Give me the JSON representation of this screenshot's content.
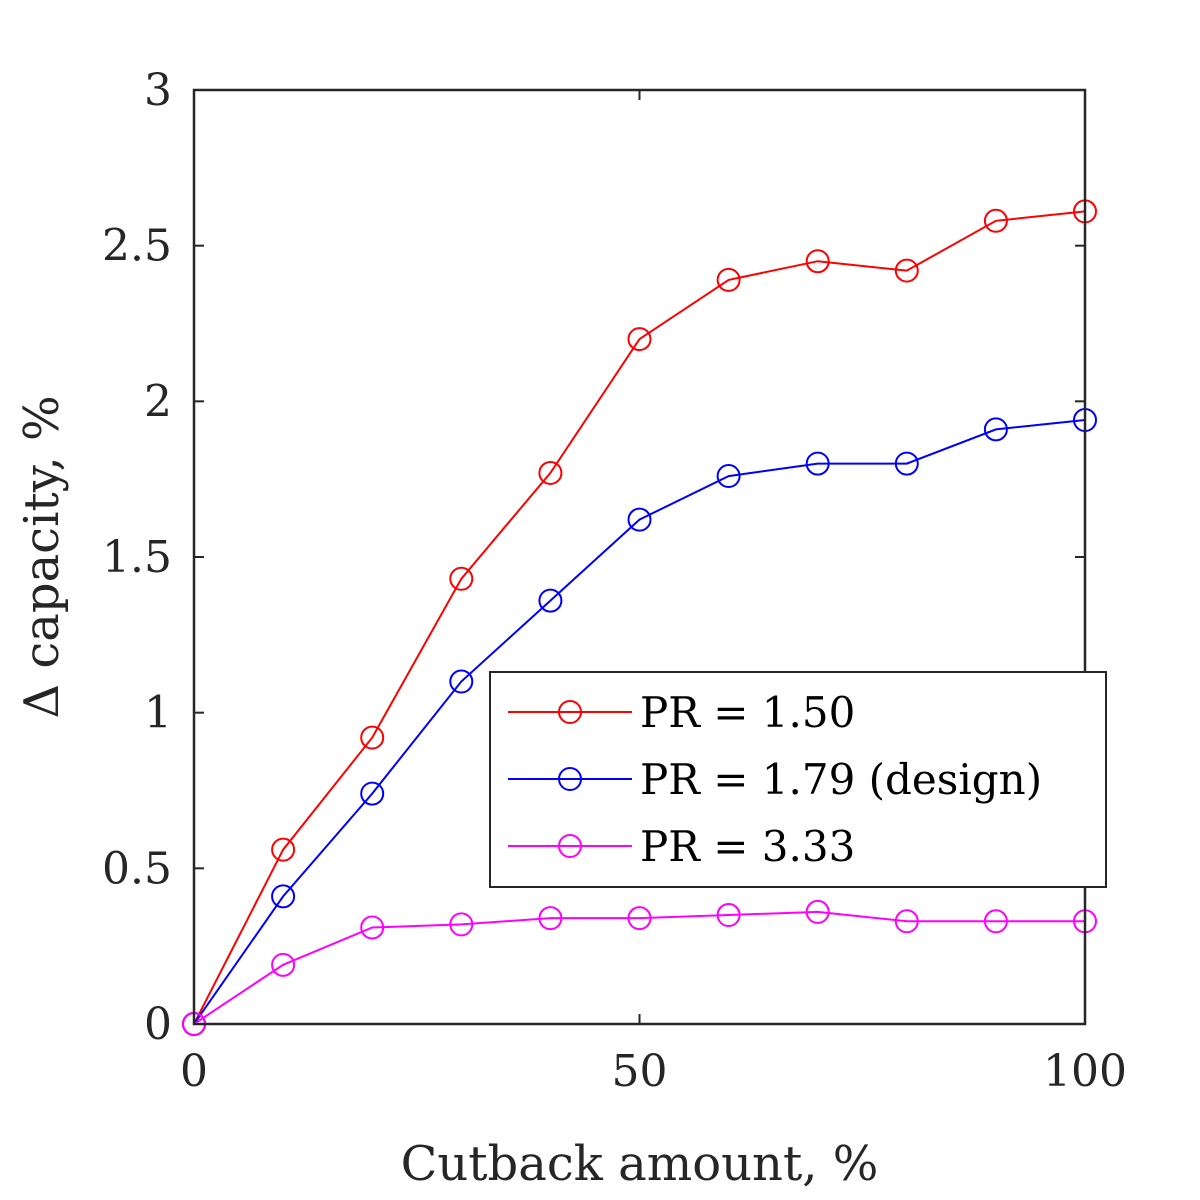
{
  "chart_data": {
    "type": "line",
    "xlabel": "Cutback amount, %",
    "ylabel": "Δ capacity, %",
    "xlim": [
      0,
      100
    ],
    "ylim": [
      0,
      3
    ],
    "xticks": [
      0,
      50,
      100
    ],
    "xtick_labels": [
      "0",
      "50",
      "100"
    ],
    "yticks": [
      0,
      0.5,
      1,
      1.5,
      2,
      2.5,
      3
    ],
    "ytick_labels": [
      "0",
      "0.5",
      "1",
      "1.5",
      "2",
      "2.5",
      "3"
    ],
    "grid": false,
    "legend_position": "inside-right",
    "x": [
      0,
      10,
      20,
      30,
      40,
      50,
      60,
      70,
      80,
      90,
      100
    ],
    "series": [
      {
        "name": "PR = 1.50",
        "color": "#ff0000",
        "marker": "circle",
        "values": [
          0,
          0.56,
          0.92,
          1.43,
          1.77,
          2.2,
          2.39,
          2.45,
          2.42,
          2.58,
          2.61
        ]
      },
      {
        "name": "PR = 1.79 (design)",
        "color": "#0000ff",
        "marker": "circle",
        "values": [
          0,
          0.41,
          0.74,
          1.1,
          1.36,
          1.62,
          1.76,
          1.8,
          1.8,
          1.91,
          1.94
        ]
      },
      {
        "name": "PR = 3.33",
        "color": "#ff00ff",
        "marker": "circle",
        "values": [
          0,
          0.19,
          0.31,
          0.32,
          0.34,
          0.34,
          0.35,
          0.36,
          0.33,
          0.33,
          0.33
        ]
      }
    ]
  }
}
